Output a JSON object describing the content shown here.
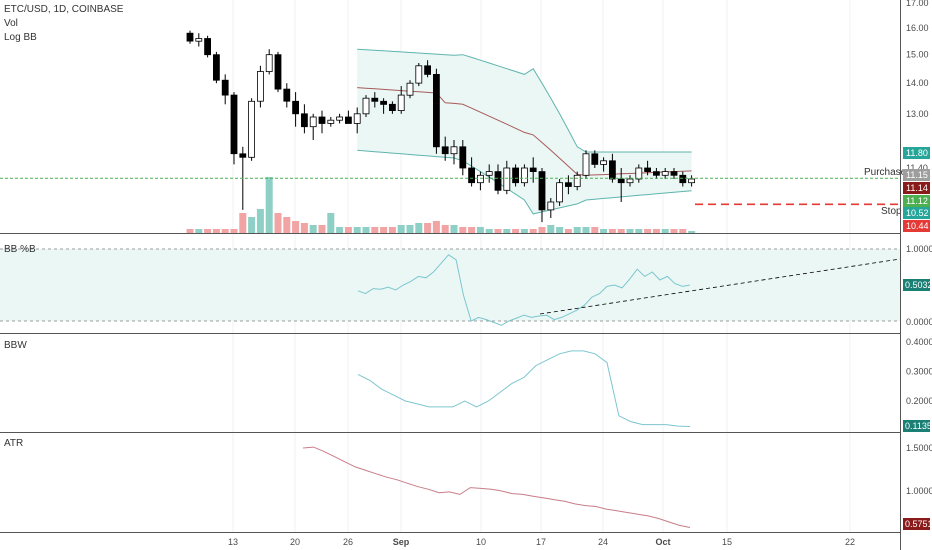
{
  "header": {
    "line1": "ETC/USD, 1D, COINBASE",
    "line2": "Vol",
    "line3": "Log BB"
  },
  "colors": {
    "bull": "#ffffff",
    "bear": "#000000",
    "candle_outline": "#000000",
    "bb_line": "#5fb4ad",
    "bb_fill": "#eaf7f5",
    "bb_mid": "#a85a5a",
    "vol_up": "#8fd0c6",
    "vol_down": "#f2a3a3",
    "green_dashed": "#4caf50",
    "red_dashed": "#e53935",
    "osc_line": "#7cc6cf",
    "atr_line": "#c87d88",
    "grid": "#eef0f3",
    "separator": "#555555"
  },
  "chart_data": [
    {
      "type": "candlestick",
      "panel": "price",
      "title": "ETC/USD, 1D, COINBASE",
      "y_ticks": [
        "17.00",
        "16.00",
        "15.00",
        "14.00",
        "13.00",
        "11.40"
      ],
      "ylim": [
        10.0,
        17.0
      ],
      "log_scale": true,
      "x_ticks": [
        "13",
        "20",
        "26",
        "Sep",
        "10",
        "17",
        "24",
        "Oct",
        "15",
        "22"
      ],
      "annotations": {
        "purchase_label": "Purchase",
        "stop_label": "Stop"
      },
      "price_tags": [
        {
          "value": "11.80",
          "color": "#26a69a"
        },
        {
          "value": "11.15",
          "color": "#9e9e9e"
        },
        {
          "value": "11.14",
          "color": "#8b1a1a"
        },
        {
          "value": "11.12",
          "color": "#4caf50"
        },
        {
          "value": "10.52",
          "color": "#26a69a"
        },
        {
          "value": "10.44",
          "color": "#e53935"
        }
      ],
      "levels": {
        "purchase": 11.12,
        "stop": 10.44
      },
      "candles": [
        [
          15.8,
          15.9,
          15.4,
          15.5
        ],
        [
          15.5,
          15.8,
          15.3,
          15.6
        ],
        [
          15.6,
          15.7,
          14.9,
          15.0
        ],
        [
          15.0,
          15.1,
          14.0,
          14.1
        ],
        [
          14.1,
          14.3,
          13.3,
          13.6
        ],
        [
          13.6,
          13.7,
          11.5,
          11.8
        ],
        [
          11.8,
          12.0,
          10.3,
          11.7
        ],
        [
          11.7,
          13.5,
          11.6,
          13.4
        ],
        [
          13.4,
          14.6,
          13.2,
          14.4
        ],
        [
          14.4,
          15.2,
          14.3,
          15.0
        ],
        [
          15.0,
          15.1,
          13.7,
          13.8
        ],
        [
          13.8,
          14.0,
          13.2,
          13.4
        ],
        [
          13.4,
          13.7,
          12.6,
          13.0
        ],
        [
          13.0,
          13.3,
          12.4,
          12.6
        ],
        [
          12.6,
          13.0,
          12.2,
          12.9
        ],
        [
          12.9,
          13.1,
          12.4,
          12.7
        ],
        [
          12.7,
          12.9,
          12.6,
          12.8
        ],
        [
          12.8,
          13.0,
          12.7,
          12.9
        ],
        [
          12.9,
          13.1,
          12.7,
          12.7
        ],
        [
          12.7,
          13.2,
          12.4,
          13.0
        ],
        [
          13.0,
          13.6,
          12.9,
          13.5
        ],
        [
          13.5,
          13.7,
          13.2,
          13.4
        ],
        [
          13.4,
          13.5,
          13.0,
          13.3
        ],
        [
          13.3,
          13.4,
          13.0,
          13.1
        ],
        [
          13.1,
          13.9,
          13.0,
          13.6
        ],
        [
          13.6,
          14.1,
          13.5,
          14.0
        ],
        [
          14.0,
          14.7,
          13.9,
          14.6
        ],
        [
          14.6,
          14.8,
          14.2,
          14.3
        ],
        [
          14.3,
          14.5,
          11.8,
          12.0
        ],
        [
          12.0,
          12.3,
          11.6,
          11.8
        ],
        [
          11.8,
          12.2,
          11.5,
          12.0
        ],
        [
          12.0,
          12.2,
          11.2,
          11.4
        ],
        [
          11.4,
          11.7,
          10.9,
          11.0
        ],
        [
          11.0,
          11.3,
          10.8,
          11.2
        ],
        [
          11.2,
          11.5,
          11.0,
          11.3
        ],
        [
          11.3,
          11.5,
          10.7,
          10.8
        ],
        [
          10.8,
          11.6,
          10.7,
          11.4
        ],
        [
          11.4,
          11.5,
          10.9,
          11.0
        ],
        [
          11.0,
          11.5,
          10.9,
          11.4
        ],
        [
          11.4,
          11.7,
          11.0,
          11.3
        ],
        [
          11.3,
          11.4,
          10.0,
          10.3
        ],
        [
          10.3,
          10.6,
          10.1,
          10.5
        ],
        [
          10.5,
          11.1,
          10.4,
          11.0
        ],
        [
          11.0,
          11.2,
          10.7,
          10.9
        ],
        [
          10.9,
          11.3,
          10.8,
          11.2
        ],
        [
          11.2,
          11.9,
          11.1,
          11.8
        ],
        [
          11.8,
          11.9,
          11.4,
          11.5
        ],
        [
          11.5,
          11.7,
          11.3,
          11.6
        ],
        [
          11.6,
          11.8,
          11.0,
          11.1
        ],
        [
          11.1,
          11.4,
          10.5,
          11.0
        ],
        [
          11.0,
          11.2,
          10.9,
          11.1
        ],
        [
          11.1,
          11.5,
          11.0,
          11.4
        ],
        [
          11.4,
          11.6,
          11.2,
          11.3
        ],
        [
          11.3,
          11.4,
          11.1,
          11.2
        ],
        [
          11.2,
          11.4,
          11.1,
          11.3
        ],
        [
          11.3,
          11.4,
          11.1,
          11.2
        ],
        [
          11.2,
          11.3,
          10.9,
          11.0
        ],
        [
          11.0,
          11.2,
          10.9,
          11.1
        ]
      ],
      "volume": [
        2,
        2,
        2,
        2,
        2,
        2,
        10,
        8,
        12,
        28,
        10,
        8,
        6,
        5,
        4,
        4,
        10,
        3,
        3,
        3,
        3,
        3,
        3,
        3,
        4,
        4,
        5,
        5,
        6,
        4,
        4,
        3,
        3,
        3,
        2,
        2,
        2,
        2,
        2,
        2,
        3,
        4,
        3,
        2,
        3,
        3,
        3,
        2,
        2,
        2,
        2,
        2,
        2,
        2,
        2,
        2,
        2,
        1
      ]
    },
    {
      "type": "line",
      "panel": "bbpct",
      "title": "BB %B",
      "y_ticks": [
        "1.0000",
        "0.0000"
      ],
      "last_value": "0.5032",
      "band": [
        0,
        1
      ],
      "values": [
        0.42,
        0.38,
        0.45,
        0.44,
        0.47,
        0.43,
        0.5,
        0.55,
        0.62,
        0.6,
        0.68,
        0.8,
        0.92,
        0.85,
        0.35,
        0.0,
        0.05,
        0.02,
        -0.02,
        -0.06,
        0.0,
        0.04,
        0.08,
        0.05,
        0.07,
        0.08,
        0.02,
        0.05,
        0.1,
        0.15,
        0.22,
        0.33,
        0.38,
        0.48,
        0.5,
        0.46,
        0.58,
        0.72,
        0.62,
        0.68,
        0.57,
        0.62,
        0.52,
        0.48,
        0.5
      ]
    },
    {
      "type": "line",
      "panel": "bbw",
      "title": "BBW",
      "y_ticks": [
        "0.4000",
        "0.3000",
        "0.2000"
      ],
      "last_value": "0.1135",
      "values": [
        0.29,
        0.27,
        0.24,
        0.22,
        0.2,
        0.19,
        0.18,
        0.18,
        0.18,
        0.2,
        0.18,
        0.2,
        0.23,
        0.26,
        0.28,
        0.32,
        0.34,
        0.36,
        0.37,
        0.37,
        0.36,
        0.33,
        0.15,
        0.13,
        0.12,
        0.12,
        0.12,
        0.115,
        0.1135
      ]
    },
    {
      "type": "line",
      "panel": "atr",
      "title": "ATR",
      "y_ticks": [
        "1.5000",
        "1.0000"
      ],
      "last_value": "0.5751",
      "values": [
        1.5,
        1.51,
        1.46,
        1.4,
        1.34,
        1.28,
        1.24,
        1.2,
        1.16,
        1.13,
        1.09,
        1.05,
        1.02,
        0.98,
        0.99,
        0.96,
        1.04,
        1.03,
        1.02,
        1.0,
        0.97,
        0.96,
        0.94,
        0.92,
        0.9,
        0.88,
        0.85,
        0.83,
        0.82,
        0.79,
        0.77,
        0.75,
        0.73,
        0.71,
        0.68,
        0.64,
        0.6,
        0.5751
      ]
    }
  ]
}
